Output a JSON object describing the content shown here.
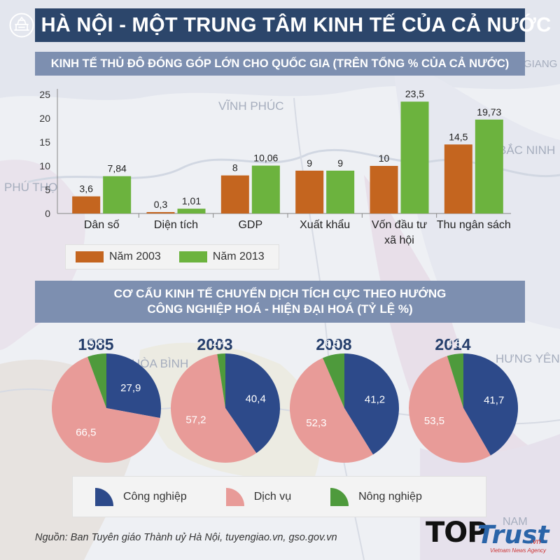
{
  "header": {
    "title": "HÀ NỘI - MỘT TRUNG TÂM KINH TẾ CỦA CẢ NƯỚC"
  },
  "section1": {
    "title": "KINH TẾ THỦ ĐÔ ĐÓNG GÓP LỚN CHO QUỐC GIA (TRÊN TỔNG % CỦA CẢ NƯỚC)"
  },
  "section2": {
    "title_line1": "CƠ CẤU KINH TẾ CHUYỂN DỊCH TÍCH CỰC THEO HƯỚNG",
    "title_line2": "CÔNG NGHIỆP HOÁ - HIỆN ĐẠI HOÁ (TỶ LỆ %)"
  },
  "map_labels": [
    "VĨNH PHÚC",
    "BẮC NINH",
    "PHÚ THỌ",
    "HÒA BÌNH",
    "HƯNG YÊN",
    "GIANG",
    "NAM"
  ],
  "chart_data": [
    {
      "type": "bar",
      "title": "KINH TẾ THỦ ĐÔ ĐÓNG GÓP LỚN CHO QUỐC GIA (TRÊN TỔNG % CỦA CẢ NƯỚC)",
      "categories": [
        "Dân số",
        "Diện tích",
        "GDP",
        "Xuất khẩu",
        "Vốn đầu tư xã hội",
        "Thu ngân sách"
      ],
      "category_lines": [
        [
          "Dân số"
        ],
        [
          "Diện tích"
        ],
        [
          "GDP"
        ],
        [
          "Xuất khẩu"
        ],
        [
          "Vốn đầu tư",
          "xã hội"
        ],
        [
          "Thu ngân sách"
        ]
      ],
      "series": [
        {
          "name": "Năm 2003",
          "color": "#c4651f",
          "values": [
            3.6,
            0.3,
            8,
            9,
            10,
            14.5
          ],
          "labels": [
            "3,6",
            "0,3",
            "8",
            "9",
            "10",
            "14,5"
          ]
        },
        {
          "name": "Năm 2013",
          "color": "#6cb33e",
          "values": [
            7.84,
            1.01,
            10.06,
            9,
            23.5,
            19.73
          ],
          "labels": [
            "7,84",
            "1,01",
            "10,06",
            "9",
            "23,5",
            "19,73"
          ]
        }
      ],
      "yticks": [
        0,
        5,
        10,
        15,
        20,
        25
      ],
      "ylim": [
        0,
        25
      ],
      "legend_position": "bottom-left",
      "xlabel": "",
      "ylabel": ""
    },
    {
      "type": "pie",
      "title": "CƠ CẤU KINH TẾ CHUYỂN DỊCH TÍCH CỰC THEO HƯỚNG CÔNG NGHIỆP HOÁ - HIỆN ĐẠI HOÁ (TỶ LỆ %)",
      "slice_names": [
        "Công nghiệp",
        "Dịch vụ",
        "Nông nghiệp"
      ],
      "colors": [
        "#2d4a8a",
        "#e89b98",
        "#4e9a3c"
      ],
      "pies": [
        {
          "year": "1985",
          "values": [
            27.9,
            66.5,
            5.6
          ],
          "labels": [
            "27,9",
            "66,5",
            "5,6"
          ]
        },
        {
          "year": "2003",
          "values": [
            40.4,
            57.2,
            2.4
          ],
          "labels": [
            "40,4",
            "57,2",
            "2,4"
          ]
        },
        {
          "year": "2008",
          "values": [
            41.2,
            52.3,
            6.5
          ],
          "labels": [
            "41,2",
            "52,3",
            "6,5"
          ]
        },
        {
          "year": "2014",
          "values": [
            41.7,
            53.5,
            4.8
          ],
          "labels": [
            "41,7",
            "53,5",
            "4,8"
          ]
        }
      ],
      "legend_position": "bottom"
    }
  ],
  "legend1": {
    "items": [
      {
        "label": "Năm 2003",
        "color": "#c4651f"
      },
      {
        "label": "Năm 2013",
        "color": "#6cb33e"
      }
    ]
  },
  "legend2": {
    "items": [
      {
        "label": "Công nghiệp",
        "color": "#2d4a8a"
      },
      {
        "label": "Dịch vụ",
        "color": "#e89b98"
      },
      {
        "label": "Nông nghiệp",
        "color": "#4e9a3c"
      }
    ]
  },
  "source": "Nguồn: Ban Tuyên giáo Thành uỷ Hà Nội, tuyengiao.vn, gso.gov.vn",
  "logo": {
    "top": "TOP",
    "trust": "Trust",
    "vn": ".vn",
    "agency": "Vietnam News Agency"
  }
}
